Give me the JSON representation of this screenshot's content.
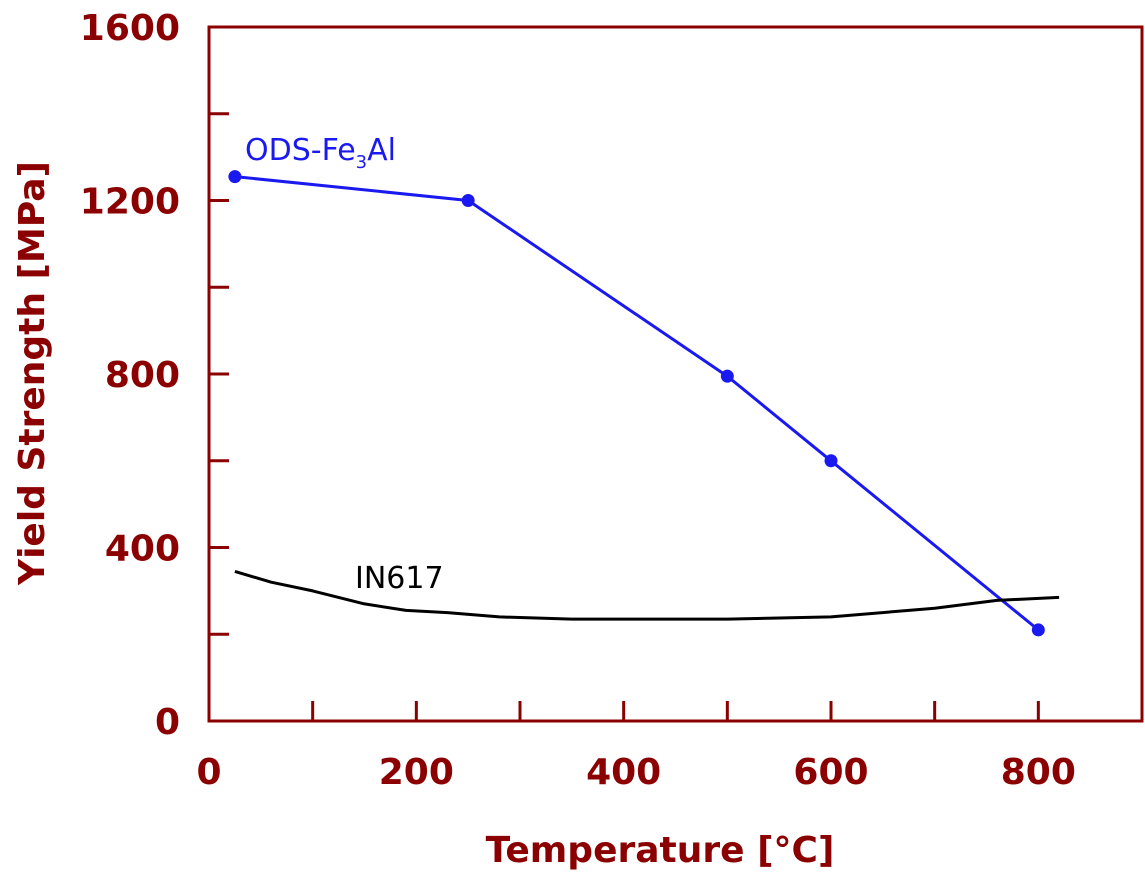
{
  "colors": {
    "axis": "#8b0000",
    "frame": "#8b0000",
    "ods": "#1a1af0",
    "in617": "#000000"
  },
  "chart_data": {
    "type": "line",
    "xlabel": "Temperature [°C]",
    "ylabel": "Yield Strength [MPa]",
    "xlim": [
      0,
      900
    ],
    "ylim": [
      0,
      1600
    ],
    "xticks": [
      "0",
      "200",
      "400",
      "600",
      "800"
    ],
    "yticks": [
      "0",
      "400",
      "800",
      "1200",
      "1600"
    ],
    "grid": false,
    "series": [
      {
        "name": "ODS-Fe3Al",
        "label_main": "ODS-Fe",
        "label_sub": "3",
        "label_tail": "Al",
        "markers": true,
        "x": [
          25,
          250,
          500,
          600,
          800
        ],
        "y": [
          1255,
          1200,
          795,
          600,
          210
        ]
      },
      {
        "name": "IN617",
        "label_main": "IN617",
        "markers": false,
        "x": [
          25,
          60,
          100,
          150,
          190,
          230,
          280,
          350,
          450,
          500,
          600,
          700,
          760,
          820
        ],
        "y": [
          345,
          320,
          300,
          270,
          255,
          250,
          240,
          235,
          235,
          235,
          240,
          260,
          278,
          285
        ]
      }
    ]
  }
}
